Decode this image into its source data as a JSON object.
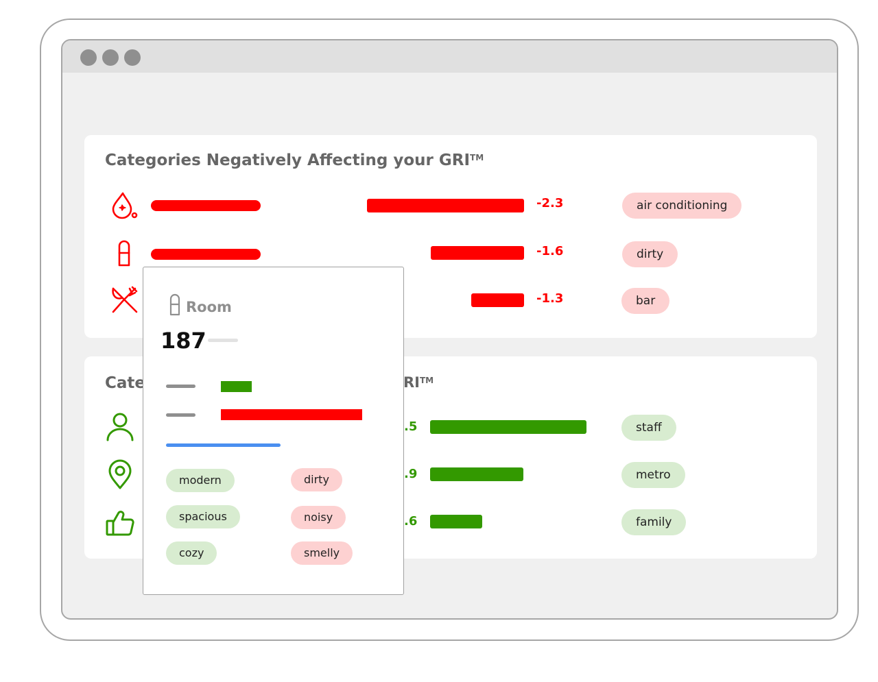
{
  "window": {
    "controls": [
      "close",
      "minimize",
      "maximize"
    ]
  },
  "negative_card": {
    "title": "Categories Negatively Affecting your GRI",
    "trademark": "TM",
    "color": "#ff0000",
    "rows": [
      {
        "icon": "water-drop-icon",
        "value": "-2.3",
        "tag": "air conditioning"
      },
      {
        "icon": "room-door-icon",
        "value": "-1.6",
        "tag": "dirty"
      },
      {
        "icon": "cutlery-icon",
        "value": "-1.3",
        "tag": "bar"
      }
    ]
  },
  "positive_card": {
    "title_visible_start": "Categ",
    "title_visible_end": "RI",
    "trademark": "TM",
    "color": "#339900",
    "rows": [
      {
        "icon": "user-icon",
        "value_visible": ".5",
        "tag": "staff"
      },
      {
        "icon": "location-pin-icon",
        "value_visible": ".9",
        "tag": "metro"
      },
      {
        "icon": "thumbs-up-icon",
        "value_visible": ".6",
        "tag": "family"
      }
    ]
  },
  "popup": {
    "icon": "room-door-icon",
    "title": "Room",
    "count": "187",
    "positive_tags": [
      "modern",
      "spacious",
      "cozy"
    ],
    "negative_tags": [
      "dirty",
      "noisy",
      "smelly"
    ]
  },
  "colors": {
    "negative": "#ff0000",
    "positive": "#339900",
    "negative_tag_bg": "#fdd1d1",
    "positive_tag_bg": "#d8ecd0",
    "accent_blue": "#4a8ff0"
  }
}
